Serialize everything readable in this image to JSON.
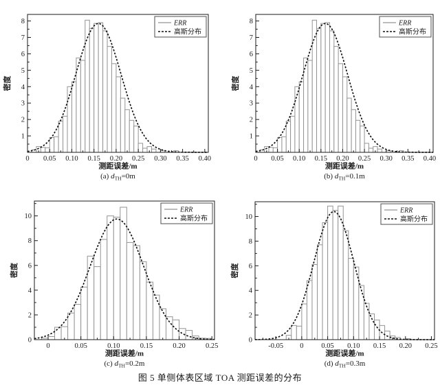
{
  "figure": {
    "caption": "图 5  单侧体表区域 TOA 测距误差的分布"
  },
  "legend": {
    "err": "ERR",
    "gauss": "高斯分布"
  },
  "colors": {
    "background": "#ffffff",
    "axis": "#1a1a1a",
    "text": "#1a1a1a",
    "bar_stroke": "#939393",
    "bar_fill": "#ffffff",
    "gauss_line": "#111111",
    "legend_border": "#3a3a3a"
  },
  "chart_data": [
    {
      "id": "a",
      "type": "histogram",
      "overlay": "line",
      "caption": {
        "pre": "(a) ",
        "sym": "d",
        "sub": "TH",
        "post": "=0m"
      },
      "xlabel": "测距误差/m",
      "ylabel": "密度",
      "xlim": [
        0,
        0.408
      ],
      "ylim": [
        0,
        8.4
      ],
      "xtick_values": [
        0,
        0.05,
        0.1,
        0.15,
        0.2,
        0.25,
        0.3,
        0.35,
        0.4
      ],
      "xtick_labels": [
        "0",
        "0.05",
        "0.10",
        "0.15",
        "0.20",
        "0.25",
        "0.30",
        "0.35",
        "0.40"
      ],
      "xminor_step": 0.025,
      "ytick_values": [
        1,
        2,
        3,
        4,
        5,
        6,
        7,
        8
      ],
      "ytick_labels": [
        "1",
        "2",
        "3",
        "4",
        "5",
        "6",
        "7",
        "8"
      ],
      "yminor_step": 0.5,
      "bin_width": 0.01,
      "bars": [
        [
          0.01,
          0.15
        ],
        [
          0.02,
          0.35
        ],
        [
          0.03,
          0.3
        ],
        [
          0.04,
          0.28
        ],
        [
          0.05,
          0.9
        ],
        [
          0.06,
          0.95
        ],
        [
          0.07,
          1.9
        ],
        [
          0.08,
          2.2
        ],
        [
          0.09,
          4.0
        ],
        [
          0.1,
          4.3
        ],
        [
          0.11,
          5.75
        ],
        [
          0.12,
          5.6
        ],
        [
          0.13,
          8.05
        ],
        [
          0.14,
          7.55
        ],
        [
          0.15,
          7.85
        ],
        [
          0.16,
          7.9
        ],
        [
          0.17,
          7.4
        ],
        [
          0.18,
          6.45
        ],
        [
          0.19,
          5.4
        ],
        [
          0.2,
          4.6
        ],
        [
          0.21,
          3.3
        ],
        [
          0.22,
          2.6
        ],
        [
          0.23,
          1.95
        ],
        [
          0.24,
          1.6
        ],
        [
          0.25,
          0.55
        ],
        [
          0.26,
          0.25
        ],
        [
          0.27,
          0.35
        ],
        [
          0.28,
          0.2
        ],
        [
          0.3,
          0.1
        ],
        [
          0.33,
          0.1
        ]
      ],
      "gaussian": {
        "mean": 0.16,
        "sigma": 0.051,
        "peak": 7.85
      },
      "legend_position": "top-right",
      "grid": false
    },
    {
      "id": "b",
      "type": "histogram",
      "overlay": "line",
      "caption": {
        "pre": "(b) ",
        "sym": "d",
        "sub": "TH",
        "post": "=0.1m"
      },
      "xlabel": "测距误差/m",
      "ylabel": "密度",
      "xlim": [
        0,
        0.408
      ],
      "ylim": [
        0,
        8.4
      ],
      "xtick_values": [
        0,
        0.05,
        0.1,
        0.15,
        0.2,
        0.25,
        0.3,
        0.35,
        0.4
      ],
      "xtick_labels": [
        "0",
        "0.05",
        "0.10",
        "0.15",
        "0.20",
        "0.25",
        "0.30",
        "0.35",
        "0.40"
      ],
      "xminor_step": 0.025,
      "ytick_values": [
        1,
        2,
        3,
        4,
        5,
        6,
        7,
        8
      ],
      "ytick_labels": [
        "1",
        "2",
        "3",
        "4",
        "5",
        "6",
        "7",
        "8"
      ],
      "yminor_step": 0.5,
      "bin_width": 0.01,
      "bars": [
        [
          0.01,
          0.15
        ],
        [
          0.02,
          0.35
        ],
        [
          0.03,
          0.3
        ],
        [
          0.04,
          0.28
        ],
        [
          0.05,
          0.9
        ],
        [
          0.06,
          0.95
        ],
        [
          0.07,
          1.9
        ],
        [
          0.08,
          2.2
        ],
        [
          0.09,
          4.0
        ],
        [
          0.1,
          4.3
        ],
        [
          0.11,
          5.75
        ],
        [
          0.12,
          5.6
        ],
        [
          0.13,
          8.05
        ],
        [
          0.14,
          7.55
        ],
        [
          0.15,
          7.85
        ],
        [
          0.16,
          7.9
        ],
        [
          0.17,
          7.4
        ],
        [
          0.18,
          6.45
        ],
        [
          0.19,
          5.4
        ],
        [
          0.2,
          4.6
        ],
        [
          0.21,
          3.3
        ],
        [
          0.22,
          2.6
        ],
        [
          0.23,
          1.95
        ],
        [
          0.24,
          1.6
        ],
        [
          0.25,
          0.55
        ],
        [
          0.26,
          0.25
        ],
        [
          0.27,
          0.35
        ],
        [
          0.28,
          0.2
        ],
        [
          0.3,
          0.1
        ],
        [
          0.33,
          0.1
        ]
      ],
      "gaussian": {
        "mean": 0.16,
        "sigma": 0.051,
        "peak": 7.85
      },
      "legend_position": "top-right",
      "grid": false
    },
    {
      "id": "c",
      "type": "histogram",
      "overlay": "line",
      "caption": {
        "pre": "(c) ",
        "sym": "d",
        "sub": "TH",
        "post": "=0.2m"
      },
      "xlabel": "测距误差/m",
      "ylabel": "密度",
      "xlim": [
        -0.021,
        0.254
      ],
      "ylim": [
        0,
        11.2
      ],
      "xtick_values": [
        0,
        0.05,
        0.1,
        0.15,
        0.2,
        0.25
      ],
      "xtick_labels": [
        "0",
        "0.05",
        "0.10",
        "0.15",
        "0.20",
        "0.25"
      ],
      "xminor_step": 0.025,
      "ytick_values": [
        0,
        2,
        4,
        6,
        8,
        10
      ],
      "ytick_labels": [
        "0",
        "2",
        "4",
        "6",
        "8",
        "10"
      ],
      "yminor_step": 1,
      "bin_width": 0.01,
      "bars": [
        [
          -0.01,
          0.12
        ],
        [
          0,
          0.25
        ],
        [
          0.01,
          1.0
        ],
        [
          0.02,
          1.05
        ],
        [
          0.03,
          2.15
        ],
        [
          0.04,
          2.85
        ],
        [
          0.05,
          4.25
        ],
        [
          0.06,
          6.75
        ],
        [
          0.07,
          5.9
        ],
        [
          0.08,
          8.1
        ],
        [
          0.09,
          10.0
        ],
        [
          0.1,
          9.9
        ],
        [
          0.11,
          10.7
        ],
        [
          0.12,
          7.85
        ],
        [
          0.13,
          7.6
        ],
        [
          0.14,
          6.3
        ],
        [
          0.15,
          4.65
        ],
        [
          0.16,
          3.6
        ],
        [
          0.17,
          2.5
        ],
        [
          0.18,
          1.85
        ],
        [
          0.19,
          1.6
        ],
        [
          0.2,
          0.9
        ],
        [
          0.21,
          0.75
        ],
        [
          0.22,
          0.3
        ],
        [
          0.23,
          0.12
        ],
        [
          0.24,
          0.1
        ]
      ],
      "gaussian": {
        "mean": 0.105,
        "sigma": 0.041,
        "peak": 9.75
      },
      "legend_position": "top-right",
      "grid": false
    },
    {
      "id": "d",
      "type": "histogram",
      "overlay": "line",
      "caption": {
        "pre": "(d) ",
        "sym": "d",
        "sub": "TH",
        "post": "=0.3m"
      },
      "xlabel": "测距误差/m",
      "ylabel": "密度",
      "xlim": [
        -0.09,
        0.256
      ],
      "ylim": [
        0,
        11.2
      ],
      "xtick_values": [
        -0.05,
        0,
        0.05,
        0.1,
        0.15,
        0.2,
        0.25
      ],
      "xtick_labels": [
        "-0.05",
        "0",
        "0.05",
        "0.10",
        "0.15",
        "0.20",
        "0.25"
      ],
      "xminor_step": 0.025,
      "ytick_values": [
        0,
        2,
        4,
        6,
        8,
        10
      ],
      "ytick_labels": [
        "0",
        "2",
        "4",
        "6",
        "8",
        "10"
      ],
      "yminor_step": 1,
      "bin_width": 0.01,
      "bars": [
        [
          -0.03,
          0.35
        ],
        [
          -0.02,
          1.15
        ],
        [
          -0.01,
          1.1
        ],
        [
          0,
          2.9
        ],
        [
          0.01,
          4.8
        ],
        [
          0.02,
          6.1
        ],
        [
          0.03,
          7.7
        ],
        [
          0.04,
          9.5
        ],
        [
          0.05,
          10.85
        ],
        [
          0.06,
          10.5
        ],
        [
          0.07,
          10.85
        ],
        [
          0.08,
          8.85
        ],
        [
          0.09,
          6.6
        ],
        [
          0.1,
          5.9
        ],
        [
          0.11,
          4.4
        ],
        [
          0.12,
          2.95
        ],
        [
          0.13,
          2.1
        ],
        [
          0.14,
          1.6
        ],
        [
          0.15,
          1.15
        ],
        [
          0.16,
          0.7
        ],
        [
          0.17,
          0.3
        ],
        [
          0.18,
          0.18
        ],
        [
          0.2,
          0.08
        ]
      ],
      "gaussian": {
        "mean": 0.062,
        "sigma": 0.0385,
        "peak": 10.4
      },
      "legend_position": "top-right",
      "grid": false
    }
  ]
}
